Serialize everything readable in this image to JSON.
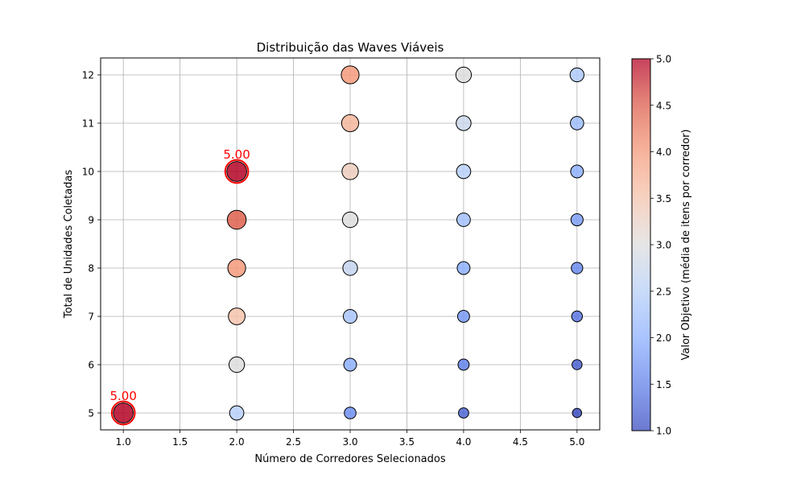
{
  "chart_data": {
    "type": "scatter",
    "title": "Distribuição das Waves Viáveis",
    "xlabel": "Número de Corredores Selecionados",
    "ylabel": "Total de Unidades Coletadas",
    "xlim": [
      0.8,
      5.2
    ],
    "ylim": [
      4.65,
      12.35
    ],
    "xticks": [
      "1.0",
      "1.5",
      "2.0",
      "2.5",
      "3.0",
      "3.5",
      "4.0",
      "4.5",
      "5.0"
    ],
    "yticks": [
      "5",
      "6",
      "7",
      "8",
      "9",
      "10",
      "11",
      "12"
    ],
    "grid": true,
    "color_scale": "coolwarm",
    "colorbar": {
      "label": "Valor Objetivo (média de itens por corredor)",
      "range": [
        1.0,
        5.0
      ],
      "ticks": [
        "1.0",
        "1.5",
        "2.0",
        "2.5",
        "3.0",
        "3.5",
        "4.0",
        "4.5",
        "5.0"
      ]
    },
    "annotation_color": "#ff0000",
    "points": [
      {
        "x": 1,
        "y": 5,
        "value": 5.0
      },
      {
        "x": 2,
        "y": 5,
        "value": 2.5
      },
      {
        "x": 2,
        "y": 6,
        "value": 3.0
      },
      {
        "x": 2,
        "y": 7,
        "value": 3.5
      },
      {
        "x": 2,
        "y": 8,
        "value": 4.0
      },
      {
        "x": 2,
        "y": 9,
        "value": 4.5
      },
      {
        "x": 2,
        "y": 10,
        "value": 5.0
      },
      {
        "x": 3,
        "y": 5,
        "value": 1.667
      },
      {
        "x": 3,
        "y": 6,
        "value": 2.0
      },
      {
        "x": 3,
        "y": 7,
        "value": 2.333
      },
      {
        "x": 3,
        "y": 8,
        "value": 2.667
      },
      {
        "x": 3,
        "y": 9,
        "value": 3.0
      },
      {
        "x": 3,
        "y": 10,
        "value": 3.333
      },
      {
        "x": 3,
        "y": 11,
        "value": 3.667
      },
      {
        "x": 3,
        "y": 12,
        "value": 4.0
      },
      {
        "x": 4,
        "y": 5,
        "value": 1.25
      },
      {
        "x": 4,
        "y": 6,
        "value": 1.5
      },
      {
        "x": 4,
        "y": 7,
        "value": 1.75
      },
      {
        "x": 4,
        "y": 8,
        "value": 2.0
      },
      {
        "x": 4,
        "y": 9,
        "value": 2.25
      },
      {
        "x": 4,
        "y": 10,
        "value": 2.5
      },
      {
        "x": 4,
        "y": 11,
        "value": 2.75
      },
      {
        "x": 4,
        "y": 12,
        "value": 3.0
      },
      {
        "x": 5,
        "y": 5,
        "value": 1.0
      },
      {
        "x": 5,
        "y": 6,
        "value": 1.2
      },
      {
        "x": 5,
        "y": 7,
        "value": 1.4
      },
      {
        "x": 5,
        "y": 8,
        "value": 1.6
      },
      {
        "x": 5,
        "y": 9,
        "value": 1.8
      },
      {
        "x": 5,
        "y": 10,
        "value": 2.0
      },
      {
        "x": 5,
        "y": 11,
        "value": 2.2
      },
      {
        "x": 5,
        "y": 12,
        "value": 2.4
      }
    ],
    "annotations": [
      {
        "x": 1,
        "y": 5,
        "text": "5.00"
      },
      {
        "x": 2,
        "y": 10,
        "text": "5.00"
      }
    ]
  }
}
